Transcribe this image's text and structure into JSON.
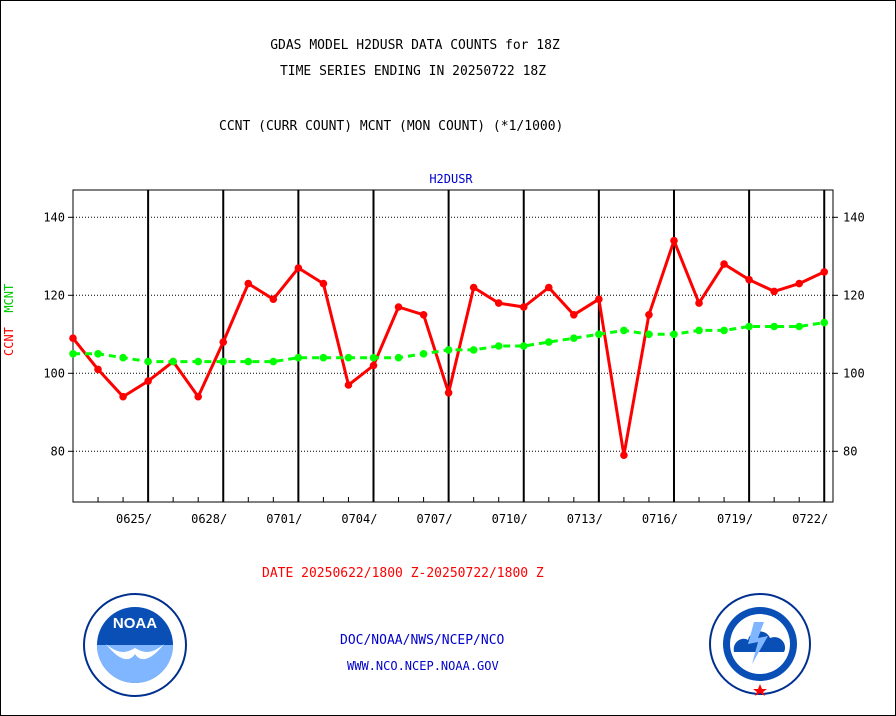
{
  "titles": {
    "line1": "GDAS MODEL H2DUSR DATA COUNTS for 18Z",
    "line2": "TIME SERIES ENDING IN 20250722 18Z",
    "subtitle": "CCNT (CURR COUNT) MCNT (MON COUNT) (*1/1000)",
    "panel": "H2DUSR"
  },
  "y_label": {
    "ccnt": "CCNT",
    "mcnt": "MCNT"
  },
  "date_range": "DATE 20250622/1800 Z-20250722/1800 Z",
  "credits": {
    "line1": "DOC/NOAA/NWS/NCEP/NCO",
    "line2": "WWW.NCO.NCEP.NOAA.GOV"
  },
  "logos": {
    "left": "noaa-logo",
    "right": "national-weather-service-logo",
    "noaa_text": "NOAA"
  },
  "colors": {
    "ccnt": "#ff0000",
    "mcnt": "#00ff00",
    "axis": "#000000",
    "panel_title": "#0000cc"
  },
  "chart_data": {
    "type": "line",
    "x_unit": "day",
    "x_start_label": "0622",
    "xlim": [
      0,
      30.35
    ],
    "ylim": [
      67,
      147
    ],
    "yticks": [
      80,
      100,
      120,
      140
    ],
    "xticks": [
      {
        "day": 3,
        "label": "0625/"
      },
      {
        "day": 6,
        "label": "0628/"
      },
      {
        "day": 9,
        "label": "0701/"
      },
      {
        "day": 12,
        "label": "0704/"
      },
      {
        "day": 15,
        "label": "0707/"
      },
      {
        "day": 18,
        "label": "0710/"
      },
      {
        "day": 21,
        "label": "0713/"
      },
      {
        "day": 24,
        "label": "0716/"
      },
      {
        "day": 27,
        "label": "0719/"
      },
      {
        "day": 30,
        "label": "0722/"
      }
    ],
    "grid": true,
    "series": [
      {
        "name": "CCNT",
        "style": "solid",
        "x": [
          0,
          1,
          2,
          3,
          4,
          5,
          6,
          7,
          8,
          9,
          10,
          11,
          12,
          13,
          14,
          15,
          16,
          17,
          18,
          19,
          20,
          21,
          22,
          23,
          24,
          25,
          26,
          27,
          28,
          29,
          30
        ],
        "values": [
          109,
          101,
          94,
          98,
          103,
          94,
          108,
          123,
          119,
          127,
          123,
          97,
          102,
          117,
          115,
          95,
          122,
          118,
          117,
          122,
          115,
          119,
          79,
          115,
          134,
          118,
          128,
          124,
          121,
          123,
          126
        ]
      },
      {
        "name": "MCNT",
        "style": "dashed",
        "x": [
          0,
          1,
          2,
          3,
          4,
          5,
          6,
          7,
          8,
          9,
          10,
          11,
          12,
          13,
          14,
          15,
          16,
          17,
          18,
          19,
          20,
          21,
          22,
          23,
          24,
          25,
          26,
          27,
          28,
          29,
          30
        ],
        "values": [
          105,
          105,
          104,
          103,
          103,
          103,
          103,
          103,
          103,
          104,
          104,
          104,
          104,
          104,
          105,
          106,
          106,
          107,
          107,
          108,
          109,
          110,
          111,
          110,
          110,
          111,
          111,
          112,
          112,
          112,
          113
        ]
      }
    ]
  }
}
